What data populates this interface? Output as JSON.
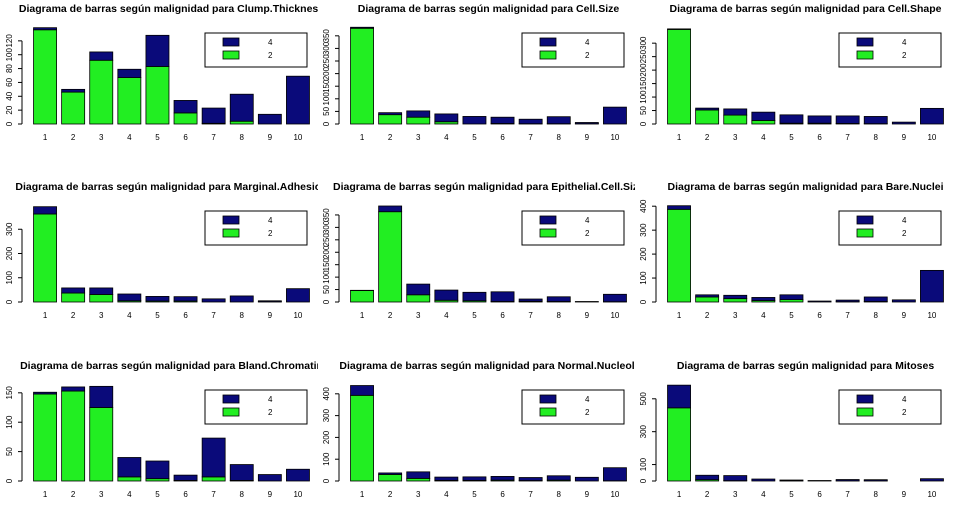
{
  "colors": {
    "malignant": "#0a0a7a",
    "benign": "#22ee22",
    "edge": "#000000"
  },
  "chart_data": [
    {
      "type": "bar",
      "title": "Diagrama de barras según malignidad para Clump.Thickness",
      "categories": [
        "1",
        "2",
        "3",
        "4",
        "5",
        "6",
        "7",
        "8",
        "9",
        "10"
      ],
      "series": [
        {
          "name": "2",
          "values": [
            136,
            46,
            92,
            67,
            83,
            16,
            1,
            4,
            0,
            0
          ]
        },
        {
          "name": "4",
          "values": [
            3,
            4,
            12,
            12,
            45,
            18,
            22,
            39,
            14,
            69
          ]
        }
      ],
      "yticks": [
        0,
        20,
        40,
        60,
        80,
        100,
        120
      ],
      "ymax": 140,
      "legend": [
        "4",
        "2"
      ],
      "legend_position": "top-right"
    },
    {
      "type": "bar",
      "title": "Diagrama de barras según malignidad para Cell.Size",
      "categories": [
        "1",
        "2",
        "3",
        "4",
        "5",
        "6",
        "7",
        "8",
        "9",
        "10"
      ],
      "series": [
        {
          "name": "2",
          "values": [
            380,
            37,
            27,
            9,
            0,
            2,
            1,
            1,
            1,
            0
          ]
        },
        {
          "name": "4",
          "values": [
            4,
            8,
            25,
            31,
            30,
            25,
            18,
            28,
            5,
            67
          ]
        }
      ],
      "yticks": [
        0,
        50,
        100,
        150,
        200,
        250,
        300,
        350
      ],
      "ymax": 385,
      "legend": [
        "4",
        "2"
      ],
      "legend_position": "top-right"
    },
    {
      "type": "bar",
      "title": "Diagrama de barras según malignidad para Cell.Shape",
      "categories": [
        "1",
        "2",
        "3",
        "4",
        "5",
        "6",
        "7",
        "8",
        "9",
        "10"
      ],
      "series": [
        {
          "name": "2",
          "values": [
            351,
            52,
            33,
            13,
            3,
            3,
            2,
            1,
            0,
            0
          ]
        },
        {
          "name": "4",
          "values": [
            2,
            7,
            23,
            31,
            31,
            27,
            28,
            27,
            7,
            58
          ]
        }
      ],
      "yticks": [
        0,
        50,
        100,
        150,
        200,
        250,
        300
      ],
      "ymax": 360,
      "legend": [
        "4",
        "2"
      ],
      "legend_position": "top-right"
    },
    {
      "type": "bar",
      "title": "Diagrama de barras según malignidad para Marginal.Adhesion",
      "categories": [
        "1",
        "2",
        "3",
        "4",
        "5",
        "6",
        "7",
        "8",
        "9",
        "10"
      ],
      "series": [
        {
          "name": "2",
          "values": [
            363,
            37,
            31,
            5,
            4,
            4,
            0,
            0,
            1,
            0
          ]
        },
        {
          "name": "4",
          "values": [
            30,
            21,
            27,
            28,
            19,
            18,
            13,
            25,
            4,
            55
          ]
        }
      ],
      "yticks": [
        0,
        100,
        200,
        300
      ],
      "ymax": 400,
      "legend": [
        "4",
        "2"
      ],
      "legend_position": "top-right"
    },
    {
      "type": "bar",
      "title": "Diagrama de barras según malignidad para Epithelial.Cell.Size",
      "categories": [
        "1",
        "2",
        "3",
        "4",
        "5",
        "6",
        "7",
        "8",
        "9",
        "10"
      ],
      "series": [
        {
          "name": "2",
          "values": [
            46,
            363,
            29,
            7,
            5,
            2,
            3,
            2,
            0,
            1
          ]
        },
        {
          "name": "4",
          "values": [
            1,
            23,
            43,
            41,
            34,
            39,
            9,
            19,
            2,
            30
          ]
        }
      ],
      "yticks": [
        0,
        50,
        100,
        150,
        200,
        250,
        300,
        350
      ],
      "ymax": 390,
      "legend": [
        "4",
        "2"
      ],
      "legend_position": "top-right"
    },
    {
      "type": "bar",
      "title": "Diagrama de barras según malignidad para Bare.Nuclei",
      "categories": [
        "1",
        "2",
        "3",
        "4",
        "5",
        "6",
        "7",
        "8",
        "9",
        "10"
      ],
      "series": [
        {
          "name": "2",
          "values": [
            387,
            21,
            14,
            6,
            10,
            0,
            1,
            2,
            0,
            0
          ]
        },
        {
          "name": "4",
          "values": [
            15,
            9,
            14,
            13,
            20,
            4,
            7,
            19,
            9,
            132
          ]
        }
      ],
      "yticks": [
        0,
        100,
        200,
        300,
        400
      ],
      "ymax": 405,
      "legend": [
        "4",
        "2"
      ],
      "legend_position": "top-right"
    },
    {
      "type": "bar",
      "title": "Diagrama de barras según malignidad para Bland.Chromatin",
      "categories": [
        "1",
        "2",
        "3",
        "4",
        "5",
        "6",
        "7",
        "8",
        "9",
        "10"
      ],
      "series": [
        {
          "name": "2",
          "values": [
            148,
            153,
            125,
            7,
            4,
            1,
            7,
            1,
            0,
            0
          ]
        },
        {
          "name": "4",
          "values": [
            3,
            7,
            36,
            33,
            30,
            9,
            66,
            27,
            11,
            20
          ]
        }
      ],
      "yticks": [
        0,
        50,
        100,
        150
      ],
      "ymax": 165,
      "legend": [
        "4",
        "2"
      ],
      "legend_position": "top-right"
    },
    {
      "type": "bar",
      "title": "Diagrama de barras según malignidad para Normal.Nucleoli",
      "categories": [
        "1",
        "2",
        "3",
        "4",
        "5",
        "6",
        "7",
        "8",
        "9",
        "10"
      ],
      "series": [
        {
          "name": "2",
          "values": [
            393,
            30,
            12,
            3,
            3,
            4,
            2,
            4,
            0,
            1
          ]
        },
        {
          "name": "4",
          "values": [
            45,
            7,
            30,
            15,
            16,
            17,
            14,
            20,
            17,
            60
          ]
        }
      ],
      "yticks": [
        0,
        100,
        200,
        300,
        400
      ],
      "ymax": 445,
      "legend": [
        "4",
        "2"
      ],
      "legend_position": "top-right"
    },
    {
      "type": "bar",
      "title": "Diagrama de barras según malignidad para Mitoses",
      "categories": [
        "1",
        "2",
        "3",
        "4",
        "5",
        "6",
        "7",
        "8",
        "9",
        "10"
      ],
      "series": [
        {
          "name": "2",
          "values": [
            445,
            8,
            2,
            0,
            1,
            0,
            1,
            1,
            0,
            0
          ]
        },
        {
          "name": "4",
          "values": [
            138,
            27,
            31,
            12,
            5,
            3,
            8,
            7,
            0,
            14
          ]
        }
      ],
      "yticks": [
        0,
        100,
        300,
        500
      ],
      "ymax": 590,
      "legend": [
        "4",
        "2"
      ],
      "legend_position": "top-right"
    }
  ]
}
